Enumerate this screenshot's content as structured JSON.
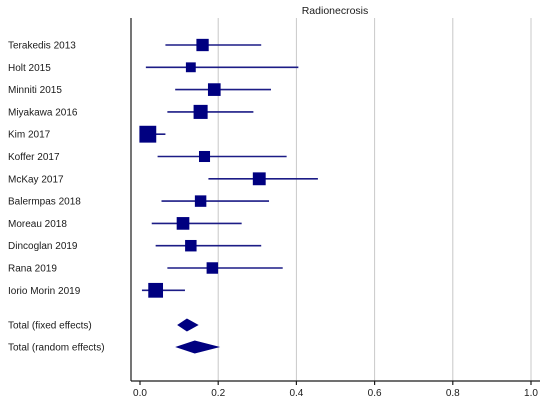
{
  "chart_data": {
    "type": "forest",
    "title": "Radionecrosis",
    "xlim": [
      0,
      1
    ],
    "xticks": [
      "0.0",
      "0.2",
      "0.4",
      "0.6",
      "0.8",
      "1.0"
    ],
    "xtick_values": [
      0,
      0.2,
      0.4,
      0.6,
      0.8,
      1.0
    ],
    "grid": "vertical",
    "colors": {
      "marker": "#000080",
      "ci": "#1c1c86",
      "grid": "#c8c8c8"
    },
    "studies": [
      {
        "label": "Terakedis 2013",
        "estimate": 0.16,
        "lower": 0.065,
        "upper": 0.31,
        "weight": 0.9
      },
      {
        "label": "Holt 2015",
        "estimate": 0.13,
        "lower": 0.015,
        "upper": 0.405,
        "weight": 0.55
      },
      {
        "label": "Minniti 2015",
        "estimate": 0.19,
        "lower": 0.09,
        "upper": 0.335,
        "weight": 0.95
      },
      {
        "label": "Miyakawa 2016",
        "estimate": 0.155,
        "lower": 0.07,
        "upper": 0.29,
        "weight": 1.15
      },
      {
        "label": "Kim 2017",
        "estimate": 0.02,
        "lower": 0.0,
        "upper": 0.065,
        "weight": 1.55
      },
      {
        "label": "Koffer 2017",
        "estimate": 0.165,
        "lower": 0.045,
        "upper": 0.375,
        "weight": 0.72
      },
      {
        "label": "McKay 2017",
        "estimate": 0.305,
        "lower": 0.175,
        "upper": 0.455,
        "weight": 0.98
      },
      {
        "label": "Balermpas 2018",
        "estimate": 0.155,
        "lower": 0.055,
        "upper": 0.33,
        "weight": 0.78
      },
      {
        "label": "Moreau 2018",
        "estimate": 0.11,
        "lower": 0.03,
        "upper": 0.26,
        "weight": 0.95
      },
      {
        "label": "Dincoglan 2019",
        "estimate": 0.13,
        "lower": 0.04,
        "upper": 0.31,
        "weight": 0.78
      },
      {
        "label": "Rana 2019",
        "estimate": 0.185,
        "lower": 0.07,
        "upper": 0.365,
        "weight": 0.78
      },
      {
        "label": "Iorio Morin 2019",
        "estimate": 0.04,
        "lower": 0.005,
        "upper": 0.115,
        "weight": 1.25
      }
    ],
    "summaries": [
      {
        "label": "Total (fixed effects)",
        "estimate": 0.12,
        "lower": 0.095,
        "upper": 0.15
      },
      {
        "label": "Total (random effects)",
        "estimate": 0.14,
        "lower": 0.09,
        "upper": 0.205
      }
    ]
  }
}
